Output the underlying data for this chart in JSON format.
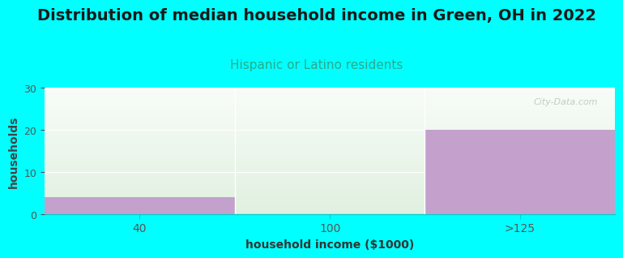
{
  "title": "Distribution of median household income in Green, OH in 2022",
  "subtitle": "Hispanic or Latino residents",
  "xlabel": "household income ($1000)",
  "ylabel": "households",
  "categories": [
    "40",
    "100",
    ">125"
  ],
  "values": [
    4,
    0,
    20
  ],
  "bar_color": "#c4a0cc",
  "bg_color": "#00ffff",
  "plot_bg_top": "#f8fcf8",
  "plot_bg_bottom": "#e0f0e0",
  "ylim": [
    0,
    30
  ],
  "yticks": [
    0,
    10,
    20,
    30
  ],
  "title_fontsize": 14,
  "title_color": "#1a1a1a",
  "subtitle_fontsize": 11,
  "subtitle_color": "#2aaa88",
  "xlabel_fontsize": 10,
  "ylabel_fontsize": 10,
  "watermark": "City-Data.com",
  "grid_color": "#e0e8e0",
  "tick_color": "#555555"
}
